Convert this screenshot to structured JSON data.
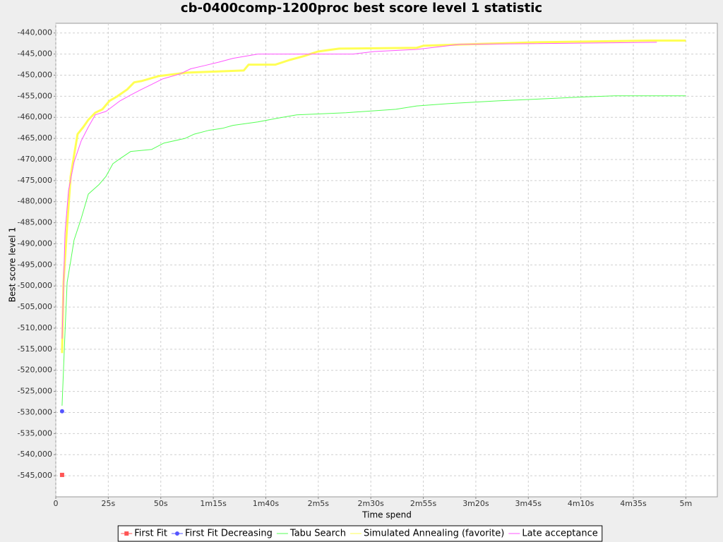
{
  "chart_data": {
    "type": "line",
    "title": "cb-0400comp-1200proc best score level 1 statistic",
    "x_label": "Time spend",
    "y_label": "Best score level 1",
    "xlim": [
      0,
      315
    ],
    "ylim": [
      -550000,
      -437700
    ],
    "xticks": [
      0,
      {
        "value": 25,
        "label": "25s"
      },
      {
        "value": 50,
        "label": "50s"
      },
      {
        "value": 75,
        "label": "1m15s"
      },
      {
        "value": 100,
        "label": "1m40s"
      },
      {
        "value": 125,
        "label": "2m5s"
      },
      {
        "value": 150,
        "label": "2m30s"
      },
      {
        "value": 175,
        "label": "2m55s"
      },
      {
        "value": 200,
        "label": "3m20s"
      },
      {
        "value": 225,
        "label": "3m45s"
      },
      {
        "value": 250,
        "label": "4m10s"
      },
      {
        "value": 275,
        "label": "4m35s"
      },
      {
        "value": 300,
        "label": "5m"
      }
    ],
    "yticks": [
      {
        "value": -440000,
        "label": "-440,000"
      },
      {
        "value": -445000,
        "label": "-445,000"
      },
      {
        "value": -450000,
        "label": "-450,000"
      },
      {
        "value": -455000,
        "label": "-455,000"
      },
      {
        "value": -460000,
        "label": "-460,000"
      },
      {
        "value": -465000,
        "label": "-465,000"
      },
      {
        "value": -470000,
        "label": "-470,000"
      },
      {
        "value": -475000,
        "label": "-475,000"
      },
      {
        "value": -480000,
        "label": "-480,000"
      },
      {
        "value": -485000,
        "label": "-485,000"
      },
      {
        "value": -490000,
        "label": "-490,000"
      },
      {
        "value": -495000,
        "label": "-495,000"
      },
      {
        "value": -500000,
        "label": "-500,000"
      },
      {
        "value": -505000,
        "label": "-505,000"
      },
      {
        "value": -510000,
        "label": "-510,000"
      },
      {
        "value": -515000,
        "label": "-515,000"
      },
      {
        "value": -520000,
        "label": "-520,000"
      },
      {
        "value": -525000,
        "label": "-525,000"
      },
      {
        "value": -530000,
        "label": "-530,000"
      },
      {
        "value": -535000,
        "label": "-535,000"
      },
      {
        "value": -540000,
        "label": "-540,000"
      },
      {
        "value": -545000,
        "label": "-545,000"
      }
    ],
    "grid": true,
    "legend": "bottom",
    "series": [
      {
        "name": "First Fit",
        "color": "#ff5555",
        "marker": "square",
        "x": [
          3
        ],
        "values": [
          -544800
        ]
      },
      {
        "name": "First Fit Decreasing",
        "color": "#5555ff",
        "marker": "circle",
        "x": [
          3
        ],
        "values": [
          -529700
        ]
      },
      {
        "name": "Tabu Search",
        "color": "#55ff55",
        "x": [
          3,
          4.4,
          5.4,
          7.1,
          8.7,
          12.1,
          15.5,
          20.5,
          23.9,
          27.2,
          30.6,
          35.7,
          45.7,
          51.5,
          61.6,
          65.9,
          72.7,
          79.4,
          84.4,
          96.2,
          104.6,
          114.7,
          138.2,
          161.8,
          171.9,
          188.7,
          210.6,
          232.4,
          249.2,
          266.1,
          300
        ],
        "values": [
          -528400,
          -510800,
          -499100,
          -494100,
          -489100,
          -484000,
          -478200,
          -476000,
          -474000,
          -471000,
          -469800,
          -468100,
          -467600,
          -466100,
          -465000,
          -464000,
          -463100,
          -462600,
          -461900,
          -461100,
          -460300,
          -459400,
          -458900,
          -458100,
          -457300,
          -456700,
          -456100,
          -455600,
          -455200,
          -454900,
          -454900
        ]
      },
      {
        "name": "Simulated Annealing (favorite)",
        "color": "#ffff55",
        "x": [
          3,
          3.7,
          5.4,
          7.1,
          8.7,
          10.4,
          13.1,
          15.5,
          18.8,
          22.2,
          25.6,
          29,
          34,
          37.3,
          40.7,
          49.1,
          62.6,
          89.5,
          91.8,
          104.6,
          111.3,
          118.1,
          124.8,
          134.9,
          171.9,
          175.2,
          229,
          282.9,
          300
        ],
        "values": [
          -515900,
          -499100,
          -485700,
          -474000,
          -469000,
          -464000,
          -462300,
          -460600,
          -458900,
          -458100,
          -456100,
          -455100,
          -453400,
          -451700,
          -451400,
          -450200,
          -449400,
          -448900,
          -447500,
          -447500,
          -446400,
          -445500,
          -444400,
          -443700,
          -443500,
          -443000,
          -442200,
          -441800,
          -441800
        ]
      },
      {
        "name": "Late acceptance",
        "color": "#ff55ff",
        "x": [
          3,
          4.4,
          6.1,
          8.7,
          12.1,
          15.5,
          18.8,
          23.9,
          30.6,
          35.7,
          40.7,
          45.7,
          50.8,
          59.2,
          64.2,
          71,
          77.7,
          84.4,
          96.2,
          141.6,
          151.7,
          171.9,
          192.1,
          286.2
        ],
        "values": [
          -512500,
          -487400,
          -477300,
          -470600,
          -465600,
          -462300,
          -459400,
          -458600,
          -456100,
          -454700,
          -453400,
          -452200,
          -450900,
          -449700,
          -448500,
          -447700,
          -446900,
          -446000,
          -445000,
          -445000,
          -444400,
          -443900,
          -442700,
          -442200
        ]
      }
    ]
  }
}
